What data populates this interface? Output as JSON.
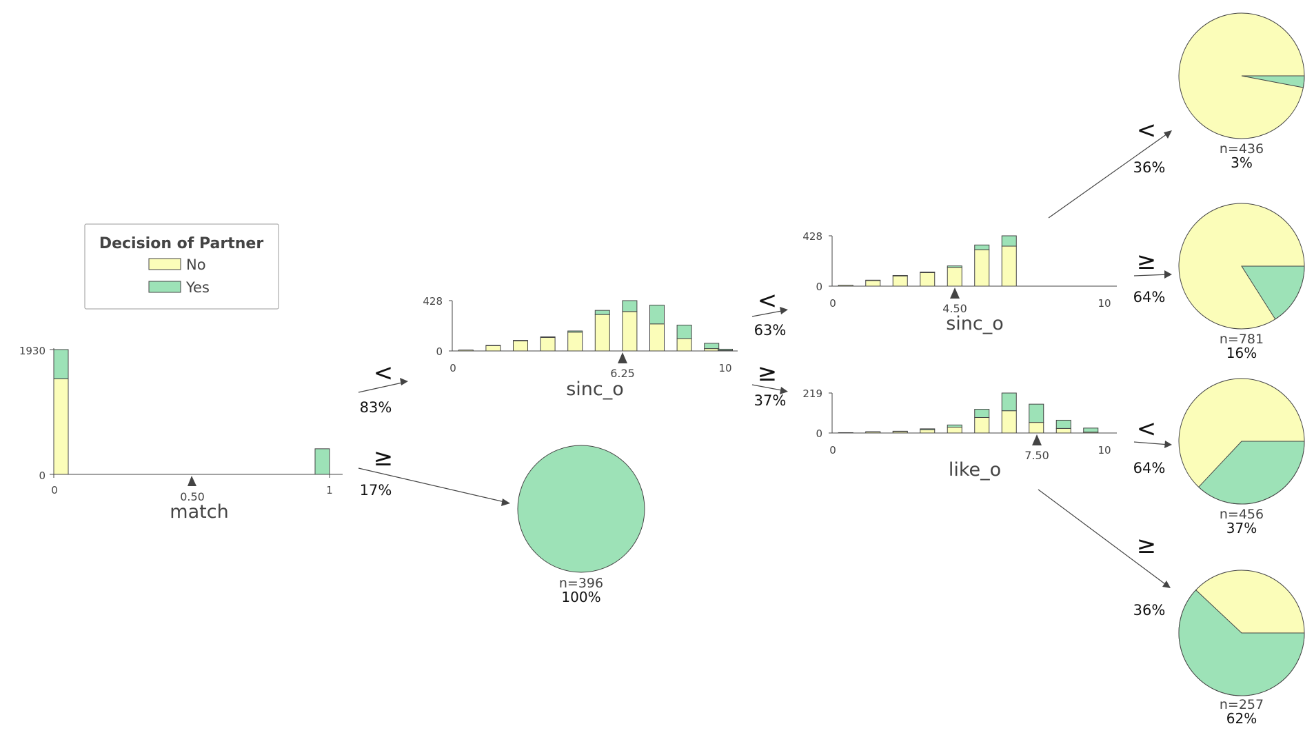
{
  "colors": {
    "No": "#fbfdb9",
    "Yes": "#9de2b7",
    "text": "#444444"
  },
  "legend": {
    "title": "Decision of Partner",
    "items": [
      {
        "label": "No",
        "color": "#fbfdb9"
      },
      {
        "label": "Yes",
        "color": "#9de2b7"
      }
    ]
  },
  "nodes": {
    "match": {
      "feature": "match",
      "threshold": "0.50",
      "x_range": [
        0,
        1
      ],
      "x_ticks": [
        "0",
        "1"
      ],
      "y_max_label": "1930",
      "y_zero_label": "0",
      "y_max": 1930,
      "bars": [
        {
          "x": 0,
          "no": 1478,
          "yes": 452
        },
        {
          "x": 1,
          "no": 0,
          "yes": 396
        }
      ]
    },
    "sinc_o_1": {
      "feature": "sinc_o",
      "threshold": "6.25",
      "x_range": [
        0,
        10
      ],
      "x_ticks": [
        "0",
        "10"
      ],
      "y_max_label": "428",
      "y_zero_label": "0",
      "y_max": 428,
      "bars": [
        {
          "x": 0.5,
          "no": 8,
          "yes": 0
        },
        {
          "x": 1.5,
          "no": 45,
          "yes": 3
        },
        {
          "x": 2.5,
          "no": 85,
          "yes": 5
        },
        {
          "x": 3.5,
          "no": 115,
          "yes": 5
        },
        {
          "x": 4.5,
          "no": 160,
          "yes": 10
        },
        {
          "x": 5.5,
          "no": 310,
          "yes": 35
        },
        {
          "x": 6.5,
          "no": 335,
          "yes": 93
        },
        {
          "x": 7.5,
          "no": 230,
          "yes": 160
        },
        {
          "x": 8.5,
          "no": 105,
          "yes": 115
        },
        {
          "x": 9.5,
          "no": 20,
          "yes": 45
        },
        {
          "x": 10,
          "no": 5,
          "yes": 10
        }
      ]
    },
    "sinc_o_2": {
      "feature": "sinc_o",
      "threshold": "4.50",
      "x_range": [
        0,
        10
      ],
      "x_ticks": [
        "0",
        "10"
      ],
      "y_max_label": "428",
      "y_zero_label": "0",
      "y_max": 428,
      "bars": [
        {
          "x": 0.5,
          "no": 8,
          "yes": 0
        },
        {
          "x": 1.5,
          "no": 48,
          "yes": 3
        },
        {
          "x": 2.5,
          "no": 87,
          "yes": 4
        },
        {
          "x": 3.5,
          "no": 115,
          "yes": 5
        },
        {
          "x": 4.5,
          "no": 160,
          "yes": 12
        },
        {
          "x": 5.5,
          "no": 310,
          "yes": 40
        },
        {
          "x": 6.5,
          "no": 340,
          "yes": 88
        }
      ]
    },
    "like_o": {
      "feature": "like_o",
      "threshold": "7.50",
      "x_range": [
        0,
        10
      ],
      "x_ticks": [
        "0",
        "10"
      ],
      "y_max_label": "219",
      "y_zero_label": "0",
      "y_max": 219,
      "bars": [
        {
          "x": 0.5,
          "no": 2,
          "yes": 0
        },
        {
          "x": 1.5,
          "no": 6,
          "yes": 1
        },
        {
          "x": 2.5,
          "no": 8,
          "yes": 2
        },
        {
          "x": 3.5,
          "no": 18,
          "yes": 5
        },
        {
          "x": 4.5,
          "no": 32,
          "yes": 12
        },
        {
          "x": 5.5,
          "no": 85,
          "yes": 45
        },
        {
          "x": 6.5,
          "no": 122,
          "yes": 97
        },
        {
          "x": 7.5,
          "no": 58,
          "yes": 100
        },
        {
          "x": 8.5,
          "no": 25,
          "yes": 45
        },
        {
          "x": 9.5,
          "no": 5,
          "yes": 22
        }
      ]
    }
  },
  "edges": {
    "match_lt": {
      "symbol": "<",
      "percent": "83%"
    },
    "match_ge": {
      "symbol": "≥",
      "percent": "17%"
    },
    "sinc1_lt": {
      "symbol": "<",
      "percent": "63%"
    },
    "sinc1_ge": {
      "symbol": "≥",
      "percent": "37%"
    },
    "sinc2_lt": {
      "symbol": "<",
      "percent": "36%"
    },
    "sinc2_ge": {
      "symbol": "≥",
      "percent": "64%"
    },
    "like_lt": {
      "symbol": "<",
      "percent": "64%"
    },
    "like_ge": {
      "symbol": "≥",
      "percent": "36%"
    }
  },
  "leaves": {
    "leaf_match_ge": {
      "n": "n=396",
      "pct": "100%",
      "yes_fraction": 1.0
    },
    "leaf_1": {
      "n": "n=436",
      "pct": "3%",
      "yes_fraction": 0.03
    },
    "leaf_2": {
      "n": "n=781",
      "pct": "16%",
      "yes_fraction": 0.16
    },
    "leaf_3": {
      "n": "n=456",
      "pct": "37%",
      "yes_fraction": 0.37
    },
    "leaf_4": {
      "n": "n=257",
      "pct": "62%",
      "yes_fraction": 0.62
    }
  }
}
